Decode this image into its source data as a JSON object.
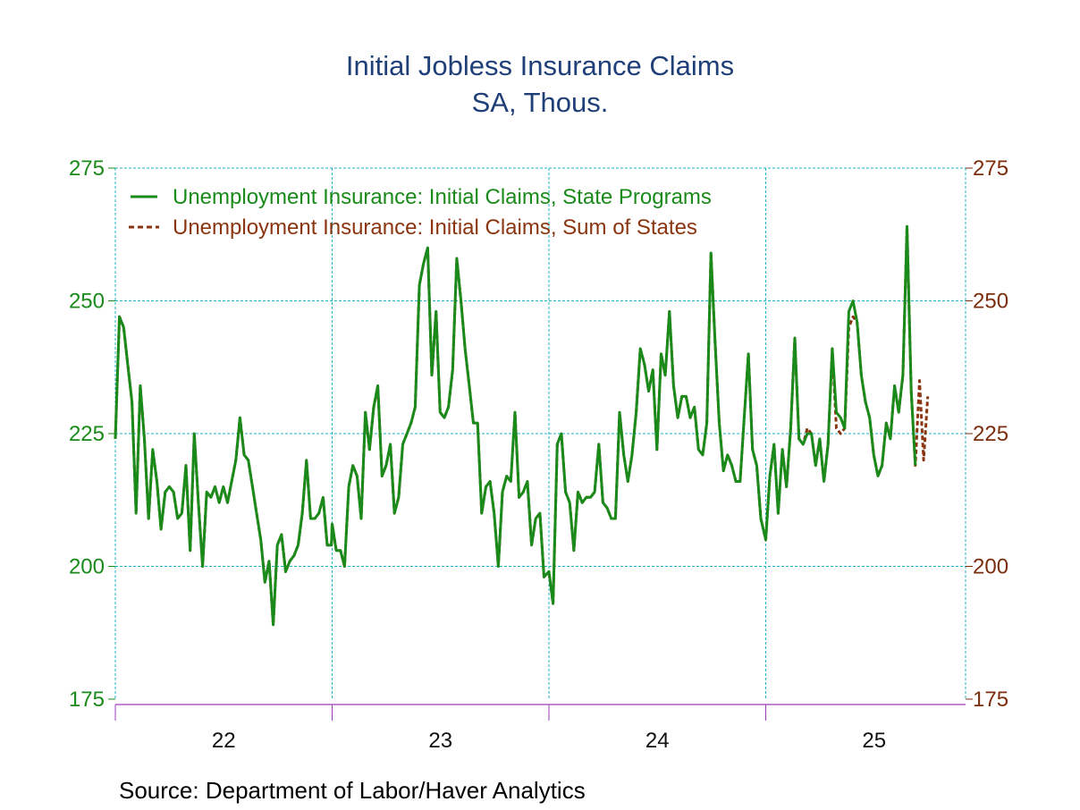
{
  "chart_data": {
    "type": "line",
    "title": "Initial Jobless Insurance Claims",
    "subtitle": "SA, Thous.",
    "source": "Source:  Department of Labor/Haver Analytics",
    "ylim": [
      175,
      275
    ],
    "yticks": [
      175,
      200,
      225,
      250,
      275
    ],
    "ytick_labels": [
      "175",
      "200",
      "225",
      "250",
      "275"
    ],
    "xlim": [
      2022,
      2025.92
    ],
    "xtick_labels": [
      {
        "year": 2022,
        "label": "22"
      },
      {
        "year": 2023,
        "label": "23"
      },
      {
        "year": 2024,
        "label": "24"
      },
      {
        "year": 2025,
        "label": "25"
      }
    ],
    "grid": true,
    "legend_position": "top-left",
    "x_unit": "weekly observations by year",
    "series": [
      {
        "name": "Unemployment Insurance: Initial Claims, State Programs",
        "color": "#1a8a1a",
        "style": "solid",
        "by_year": [
          {
            "year": 2022,
            "values": [
              224,
              247,
              245,
              238,
              231,
              210,
              234,
              224,
              209,
              222,
              216,
              207,
              214,
              215,
              214,
              209,
              210,
              219,
              203,
              225,
              212,
              200,
              214,
              213,
              215,
              212,
              215,
              212,
              216,
              220,
              228,
              221,
              220,
              215,
              210,
              205,
              197,
              201,
              189,
              204,
              206,
              199,
              201,
              202,
              204,
              210,
              220,
              209,
              209,
              210,
              213,
              204,
              204
            ]
          },
          {
            "year": 2023,
            "values": [
              208,
              203,
              203,
              200,
              215,
              219,
              217,
              209,
              229,
              222,
              230,
              234,
              217,
              219,
              223,
              210,
              213,
              223,
              225,
              227,
              230,
              253,
              257,
              260,
              236,
              248,
              229,
              228,
              230,
              237,
              258,
              250,
              241,
              234,
              227,
              227,
              210,
              215,
              216,
              210,
              200,
              214,
              217,
              216,
              229,
              213,
              214,
              216,
              204,
              209,
              210,
              198
            ]
          },
          {
            "year": 2024,
            "values": [
              199,
              193,
              223,
              225,
              214,
              212,
              203,
              214,
              212,
              213,
              213,
              214,
              223,
              212,
              211,
              209,
              209,
              229,
              221,
              216,
              221,
              229,
              241,
              238,
              233,
              237,
              222,
              240,
              236,
              248,
              234,
              228,
              232,
              232,
              228,
              230,
              222,
              221,
              227,
              259,
              242,
              227,
              218,
              221,
              219,
              216,
              216,
              228,
              240,
              222,
              219,
              209
            ]
          },
          {
            "year": 2025,
            "values": [
              205,
              217,
              223,
              210,
              222,
              215,
              226,
              243,
              224,
              223,
              225,
              225,
              219,
              224,
              216,
              223,
              241,
              229,
              228,
              226,
              248,
              250,
              246,
              236,
              231,
              228,
              221,
              217,
              219,
              227,
              224,
              234,
              229,
              236,
              264,
              233,
              219
            ]
          }
        ]
      },
      {
        "name": "Unemployment Insurance: Initial Claims, Sum of States",
        "color": "#8b3510",
        "style": "dashed",
        "by_year": [
          {
            "year": 2022,
            "values": [
              224,
              247,
              245,
              238,
              231,
              210,
              234,
              224,
              209,
              222,
              216,
              207,
              214,
              215,
              214,
              209,
              210,
              219,
              203,
              225,
              212,
              200,
              214,
              213,
              215,
              212,
              215,
              212,
              216,
              220,
              228,
              221,
              220,
              215,
              210,
              205,
              197,
              201,
              189,
              204,
              206,
              199,
              201,
              202,
              204,
              210,
              220,
              209,
              209,
              210,
              213,
              204,
              204
            ]
          },
          {
            "year": 2023,
            "values": [
              208,
              203,
              203,
              200,
              215,
              219,
              217,
              209,
              229,
              222,
              230,
              234,
              217,
              219,
              223,
              210,
              213,
              223,
              225,
              227,
              230,
              253,
              257,
              260,
              236,
              248,
              229,
              228,
              230,
              237,
              258,
              250,
              241,
              234,
              227,
              227,
              210,
              215,
              216,
              210,
              200,
              214,
              217,
              216,
              229,
              213,
              214,
              216,
              204,
              209,
              210,
              198
            ]
          },
          {
            "year": 2024,
            "values": [
              199,
              193,
              223,
              225,
              214,
              212,
              203,
              214,
              212,
              213,
              213,
              214,
              223,
              212,
              211,
              209,
              209,
              229,
              221,
              216,
              221,
              229,
              241,
              238,
              233,
              237,
              222,
              240,
              236,
              248,
              234,
              228,
              232,
              232,
              228,
              230,
              222,
              221,
              227,
              259,
              242,
              227,
              218,
              221,
              219,
              216,
              216,
              228,
              240,
              222,
              219,
              209
            ]
          },
          {
            "year": 2025,
            "values": [
              205,
              217,
              223,
              210,
              222,
              215,
              226,
              243,
              224,
              223,
              226,
              225,
              219,
              224,
              216,
              223,
              241,
              226,
              225,
              226,
              245,
              247,
              246,
              236,
              231,
              228,
              221,
              217,
              219,
              227,
              224,
              234,
              229,
              236,
              264,
              233,
              219,
              235,
              220,
              232
            ]
          }
        ]
      }
    ]
  }
}
